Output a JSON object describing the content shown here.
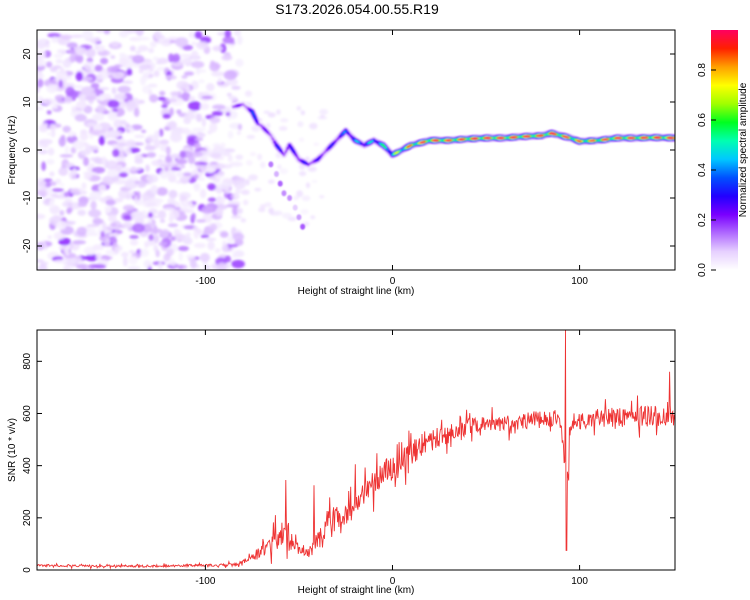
{
  "title": "S173.2026.054.00.55.R19",
  "colorbar": {
    "label": "Normalized spectral amplitude",
    "ticks": [
      "0.0",
      "0.2",
      "0.4",
      "0.6",
      "0.8"
    ],
    "tick_values": [
      0.0,
      0.2,
      0.4,
      0.6,
      0.8
    ],
    "range": [
      0.0,
      0.96
    ],
    "colormap": [
      "#ffffff",
      "#e6d0ff",
      "#b06aff",
      "#7a00ff",
      "#2200ff",
      "#0050ff",
      "#00c8ff",
      "#00ffb0",
      "#00ff20",
      "#a0ff00",
      "#ffff00",
      "#ffa000",
      "#ff2000",
      "#ff0060"
    ]
  },
  "chart_data": [
    {
      "type": "heatmap",
      "title": "S173.2026.054.00.55.R19",
      "xlabel": "Height of straight line (km)",
      "ylabel": "Frequency (Hz)",
      "xlim": [
        -190,
        151
      ],
      "ylim": [
        -25,
        25
      ],
      "x_ticks": [
        -100,
        0,
        100
      ],
      "x_tick_labels": [
        "-100",
        "0",
        "100"
      ],
      "y_ticks": [
        -20,
        -10,
        0,
        10,
        20
      ],
      "y_tick_labels": [
        "-20",
        "-10",
        "0",
        "10",
        "20"
      ],
      "noise_region_x": [
        -190,
        -83
      ],
      "ridge": {
        "x": [
          -85,
          -80,
          -75,
          -72,
          -70,
          -65,
          -62,
          -58,
          -55,
          -50,
          -45,
          -40,
          -35,
          -30,
          -25,
          -20,
          -15,
          -10,
          -5,
          0,
          5,
          10,
          20,
          30,
          40,
          50,
          60,
          70,
          80,
          85,
          90,
          95,
          100,
          110,
          120,
          130,
          140,
          151
        ],
        "y": [
          9,
          9.5,
          8,
          5.5,
          5,
          3,
          1,
          -1,
          1,
          -2,
          -3,
          -2,
          0,
          2,
          4,
          2,
          1,
          2,
          1,
          -1,
          0,
          1,
          2,
          2,
          2.3,
          2.5,
          2.5,
          2.8,
          3,
          3.5,
          3,
          2.5,
          1.8,
          2,
          2.5,
          2.5,
          2.6,
          2.5
        ],
        "amplitude": [
          0.25,
          0.15,
          0.3,
          0.35,
          0.2,
          0.2,
          0.3,
          0.25,
          0.25,
          0.3,
          0.25,
          0.25,
          0.25,
          0.3,
          0.35,
          0.4,
          0.4,
          0.45,
          0.5,
          0.55,
          0.7,
          0.8,
          0.9,
          0.88,
          0.9,
          0.92,
          0.92,
          0.9,
          0.9,
          0.92,
          0.9,
          0.85,
          0.8,
          0.85,
          0.9,
          0.9,
          0.92,
          0.92
        ]
      },
      "secondary_branch": {
        "x": [
          -65,
          -62,
          -60,
          -58,
          -55,
          -52,
          -50,
          -48
        ],
        "y": [
          -3,
          -5,
          -7,
          -9,
          -10,
          -12,
          -14,
          -16
        ]
      }
    },
    {
      "type": "line",
      "xlabel": "Height of straight line (km)",
      "ylabel": "SNR (10 * v/v)",
      "xlim": [
        -190,
        151
      ],
      "ylim": [
        0,
        920
      ],
      "x_ticks": [
        -100,
        0,
        100
      ],
      "x_tick_labels": [
        "-100",
        "0",
        "100"
      ],
      "y_ticks": [
        0,
        200,
        400,
        600,
        800
      ],
      "y_tick_labels": [
        "0",
        "200",
        "400",
        "600",
        "800"
      ],
      "color": "#ee3333",
      "series": [
        {
          "name": "SNR",
          "x": [
            -190,
            -160,
            -130,
            -100,
            -85,
            -80,
            -75,
            -70,
            -65,
            -60,
            -57,
            -55,
            -50,
            -45,
            -40,
            -35,
            -30,
            -25,
            -20,
            -15,
            -10,
            -5,
            0,
            5,
            10,
            15,
            20,
            30,
            40,
            50,
            60,
            70,
            80,
            90,
            93,
            95,
            100,
            110,
            120,
            130,
            140,
            151
          ],
          "y": [
            18,
            15,
            15,
            18,
            20,
            30,
            50,
            70,
            90,
            130,
            170,
            110,
            70,
            60,
            100,
            180,
            200,
            200,
            250,
            290,
            330,
            370,
            390,
            410,
            450,
            480,
            500,
            520,
            550,
            560,
            560,
            570,
            580,
            570,
            300,
            560,
            570,
            580,
            585,
            590,
            590,
            590
          ],
          "noise": [
            6,
            6,
            6,
            6,
            8,
            12,
            25,
            40,
            60,
            80,
            90,
            60,
            40,
            30,
            50,
            70,
            70,
            60,
            70,
            70,
            70,
            70,
            70,
            70,
            70,
            70,
            60,
            50,
            45,
            40,
            45,
            45,
            50,
            60,
            90,
            60,
            50,
            55,
            55,
            55,
            60,
            60
          ],
          "spikes": [
            {
              "x": -57,
              "y": 345
            },
            {
              "x": -42,
              "y": 325
            },
            {
              "x": -20,
              "y": 405
            },
            {
              "x": 92.5,
              "y": 920
            },
            {
              "x": 93,
              "y": 75
            },
            {
              "x": 148,
              "y": 760
            }
          ]
        }
      ]
    }
  ]
}
